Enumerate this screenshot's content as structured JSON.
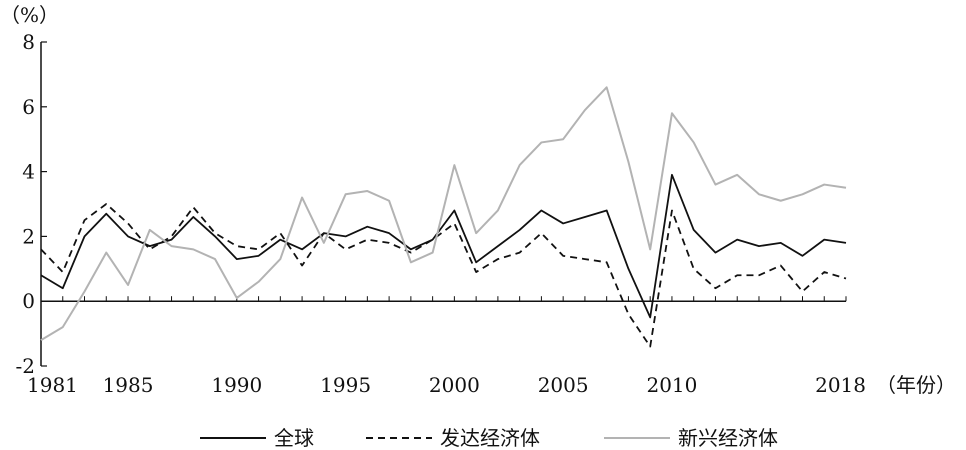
{
  "chart_data": {
    "type": "line",
    "ylabel": "（%）",
    "xlabel": "（年份）",
    "title": "",
    "ylim": [
      -2,
      8
    ],
    "xlim": [
      1981,
      2018
    ],
    "y_ticks": [
      -2,
      0,
      2,
      4,
      6,
      8
    ],
    "x_ticks": [
      1981,
      1985,
      1990,
      1995,
      2000,
      2005,
      2010,
      2018
    ],
    "grid": false,
    "legend_position": "bottom",
    "x": [
      1981,
      1982,
      1983,
      1984,
      1985,
      1986,
      1987,
      1988,
      1989,
      1990,
      1991,
      1992,
      1993,
      1994,
      1995,
      1996,
      1997,
      1998,
      1999,
      2000,
      2001,
      2002,
      2003,
      2004,
      2005,
      2006,
      2007,
      2008,
      2009,
      2010,
      2011,
      2012,
      2013,
      2014,
      2015,
      2016,
      2017,
      2018
    ],
    "series": [
      {
        "name": "全球",
        "style": "solid",
        "color": "#111111",
        "values": [
          0.8,
          0.4,
          2.0,
          2.7,
          2.0,
          1.7,
          1.9,
          2.6,
          2.0,
          1.3,
          1.4,
          1.9,
          1.6,
          2.1,
          2.0,
          2.3,
          2.1,
          1.6,
          1.9,
          2.8,
          1.2,
          1.7,
          2.2,
          2.8,
          2.4,
          2.6,
          2.8,
          1.0,
          -0.5,
          3.9,
          2.2,
          1.5,
          1.9,
          1.7,
          1.8,
          1.4,
          1.9,
          1.8
        ]
      },
      {
        "name": "发达经济体",
        "style": "dashed",
        "color": "#111111",
        "values": [
          1.6,
          0.9,
          2.5,
          3.0,
          2.4,
          1.6,
          2.0,
          2.9,
          2.1,
          1.7,
          1.6,
          2.1,
          1.1,
          2.1,
          1.6,
          1.9,
          1.8,
          1.5,
          1.9,
          2.4,
          0.9,
          1.3,
          1.5,
          2.1,
          1.4,
          1.3,
          1.2,
          -0.4,
          -1.4,
          2.8,
          1.0,
          0.4,
          0.8,
          0.8,
          1.1,
          0.3,
          0.9,
          0.7
        ]
      },
      {
        "name": "新兴经济体",
        "style": "solid",
        "color": "#b3b3b3",
        "values": [
          -1.2,
          -0.8,
          0.3,
          1.5,
          0.5,
          2.2,
          1.7,
          1.6,
          1.3,
          0.1,
          0.6,
          1.3,
          3.2,
          1.8,
          3.3,
          3.4,
          3.1,
          1.2,
          1.5,
          4.2,
          2.1,
          2.8,
          4.2,
          4.9,
          5.0,
          5.9,
          6.6,
          4.3,
          1.6,
          5.8,
          4.9,
          3.6,
          3.9,
          3.3,
          3.1,
          3.3,
          3.6,
          3.5
        ]
      }
    ]
  }
}
